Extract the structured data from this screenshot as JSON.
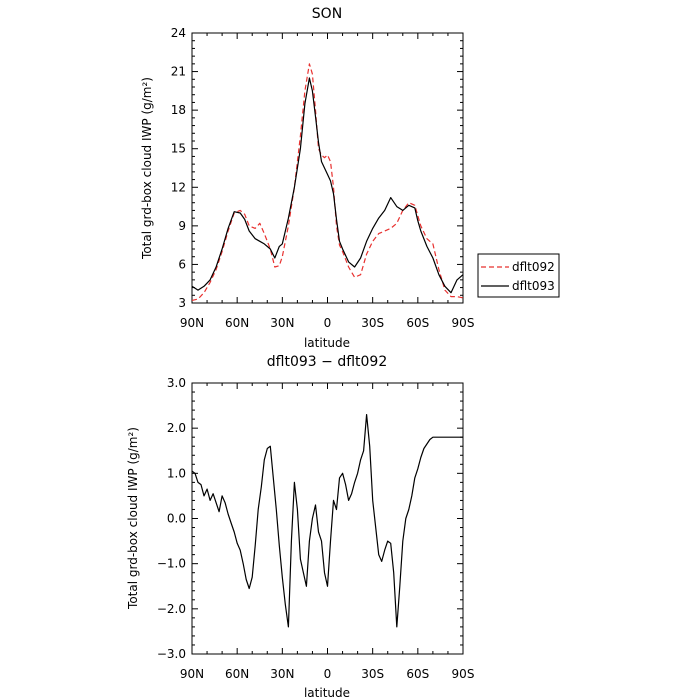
{
  "chart_data": [
    {
      "type": "line",
      "title": "SON",
      "xlabel": "latitude",
      "ylabel": "Total grd-box cloud IWP (g/m²)",
      "ylim": [
        3,
        24
      ],
      "yticks": [
        3,
        6,
        9,
        12,
        15,
        18,
        21,
        24
      ],
      "ytick_labels": [
        "3",
        "6",
        "9",
        "12",
        "15",
        "18",
        "21",
        "24"
      ],
      "xlim": [
        90,
        -90
      ],
      "xticks": [
        90,
        60,
        30,
        0,
        -30,
        -60,
        -90
      ],
      "xtick_labels": [
        "90N",
        "60N",
        "30N",
        "0",
        "30S",
        "60S",
        "90S"
      ],
      "legend_position": "right",
      "series": [
        {
          "name": "dflt092",
          "color": "#e8312f",
          "dash": "dashed",
          "x": [
            90,
            86,
            82,
            78,
            74,
            70,
            66,
            62,
            58,
            55,
            52,
            48,
            45,
            42,
            38,
            35,
            32,
            30,
            26,
            22,
            18,
            15,
            12,
            10,
            8,
            6,
            4,
            2,
            0,
            -2,
            -4,
            -6,
            -8,
            -10,
            -14,
            -18,
            -22,
            -26,
            -30,
            -34,
            -38,
            -42,
            -46,
            -50,
            -54,
            -58,
            -60,
            -62,
            -66,
            -70,
            -74,
            -78,
            -82,
            -86,
            -90
          ],
          "values": [
            3.2,
            3.3,
            3.8,
            4.6,
            5.6,
            7.0,
            8.6,
            10.0,
            10.2,
            9.9,
            9.0,
            8.8,
            9.2,
            8.4,
            7.2,
            5.8,
            5.9,
            6.6,
            9.0,
            12.0,
            16.0,
            19.5,
            21.6,
            20.8,
            18.0,
            15.0,
            14.5,
            14.3,
            14.5,
            14.0,
            12.0,
            9.0,
            7.5,
            7.0,
            5.8,
            5.0,
            5.2,
            6.8,
            7.8,
            8.4,
            8.6,
            8.8,
            9.2,
            10.2,
            10.8,
            10.6,
            9.8,
            9.0,
            8.0,
            7.6,
            5.6,
            4.0,
            3.5,
            3.5,
            3.4
          ]
        },
        {
          "name": "dflt093",
          "color": "#000000",
          "dash": "solid",
          "x": [
            90,
            86,
            82,
            78,
            74,
            70,
            66,
            62,
            58,
            55,
            52,
            48,
            45,
            42,
            38,
            35,
            32,
            30,
            26,
            22,
            18,
            15,
            12,
            10,
            8,
            6,
            4,
            2,
            0,
            -2,
            -4,
            -6,
            -8,
            -10,
            -14,
            -18,
            -22,
            -26,
            -30,
            -34,
            -38,
            -42,
            -46,
            -50,
            -54,
            -58,
            -60,
            -62,
            -66,
            -70,
            -74,
            -78,
            -82,
            -86,
            -90
          ],
          "values": [
            4.3,
            4.0,
            4.3,
            4.8,
            5.8,
            7.2,
            8.8,
            10.1,
            10.0,
            9.5,
            8.6,
            8.0,
            7.8,
            7.6,
            7.2,
            6.5,
            7.4,
            7.6,
            9.6,
            12.0,
            15.0,
            18.5,
            20.5,
            19.5,
            17.5,
            15.5,
            14.0,
            13.5,
            13.0,
            12.5,
            11.5,
            9.5,
            7.8,
            7.2,
            6.2,
            5.8,
            6.5,
            7.8,
            8.8,
            9.6,
            10.2,
            11.2,
            10.5,
            10.2,
            10.6,
            10.4,
            9.4,
            8.6,
            7.4,
            6.5,
            5.2,
            4.3,
            3.8,
            4.8,
            5.2
          ]
        }
      ]
    },
    {
      "type": "line",
      "title": "dflt093 − dflt092",
      "xlabel": "latitude",
      "ylabel": "Total grd-box cloud IWP (g/m²)",
      "ylim": [
        -3.0,
        3.0
      ],
      "yticks": [
        -3.0,
        -2.0,
        -1.0,
        0.0,
        1.0,
        2.0,
        3.0
      ],
      "ytick_labels": [
        "−3.0",
        "−2.0",
        "−1.0",
        "0.0",
        "1.0",
        "2.0",
        "3.0"
      ],
      "xlim": [
        90,
        -90
      ],
      "xticks": [
        90,
        60,
        30,
        0,
        -30,
        -60,
        -90
      ],
      "xtick_labels": [
        "90N",
        "60N",
        "30N",
        "0",
        "30S",
        "60S",
        "90S"
      ],
      "series": [
        {
          "color": "#000000",
          "dash": "solid",
          "x": [
            90,
            88,
            86,
            84,
            82,
            80,
            78,
            76,
            74,
            72,
            70,
            68,
            66,
            64,
            62,
            60,
            58,
            56,
            54,
            52,
            50,
            48,
            46,
            44,
            42,
            40,
            38,
            36,
            34,
            32,
            30,
            28,
            26,
            24,
            22,
            20,
            18,
            16,
            14,
            12,
            10,
            8,
            6,
            4,
            2,
            0,
            -2,
            -4,
            -6,
            -8,
            -10,
            -12,
            -14,
            -16,
            -18,
            -20,
            -22,
            -24,
            -26,
            -28,
            -30,
            -32,
            -34,
            -36,
            -38,
            -40,
            -42,
            -44,
            -46,
            -48,
            -50,
            -52,
            -54,
            -56,
            -58,
            -60,
            -62,
            -64,
            -66,
            -68,
            -70,
            -72,
            -74,
            -76,
            -78,
            -80,
            -82,
            -84,
            -86,
            -88,
            -90
          ],
          "values": [
            1.05,
            1.0,
            0.8,
            0.75,
            0.5,
            0.65,
            0.4,
            0.55,
            0.35,
            0.15,
            0.5,
            0.35,
            0.1,
            -0.1,
            -0.3,
            -0.55,
            -0.7,
            -1.0,
            -1.35,
            -1.55,
            -1.3,
            -0.6,
            0.2,
            0.7,
            1.3,
            1.55,
            1.6,
            0.9,
            0.2,
            -0.6,
            -1.3,
            -1.9,
            -2.4,
            -0.5,
            0.8,
            0.2,
            -0.9,
            -1.2,
            -1.5,
            -0.5,
            0.0,
            0.3,
            -0.3,
            -0.5,
            -1.2,
            -1.5,
            -0.5,
            0.4,
            0.2,
            0.9,
            1.0,
            0.75,
            0.4,
            0.55,
            0.8,
            1.0,
            1.3,
            1.5,
            2.3,
            1.6,
            0.4,
            -0.2,
            -0.8,
            -0.95,
            -0.7,
            -0.5,
            -0.55,
            -1.2,
            -2.4,
            -1.5,
            -0.5,
            0.0,
            0.2,
            0.5,
            0.9,
            1.1,
            1.35,
            1.55,
            1.65,
            1.75,
            1.8,
            1.8,
            1.8,
            1.8,
            1.8,
            1.8,
            1.8,
            1.8,
            1.8,
            1.8,
            1.8
          ]
        }
      ]
    }
  ]
}
